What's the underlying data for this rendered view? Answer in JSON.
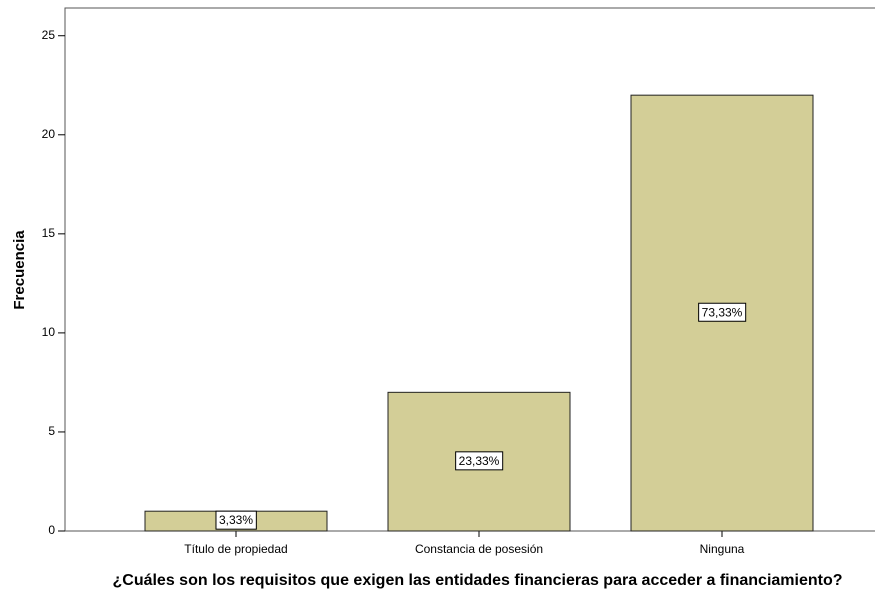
{
  "chart_data": {
    "type": "bar",
    "y_label": "Frecuencia",
    "x_label": "¿Cuáles son los requisitos que exigen las entidades financieras para acceder a financiamiento?",
    "categories": [
      "Título de propiedad",
      "Constancia de posesión",
      "Ninguna"
    ],
    "values": [
      1,
      7,
      22
    ],
    "percent_labels": [
      "3,33%",
      "23,33%",
      "73,33%"
    ],
    "color": "#d3ce97",
    "ylim": [
      0,
      26.4
    ],
    "yticks": [
      0,
      5,
      10,
      15,
      20,
      25
    ],
    "grid": false
  }
}
